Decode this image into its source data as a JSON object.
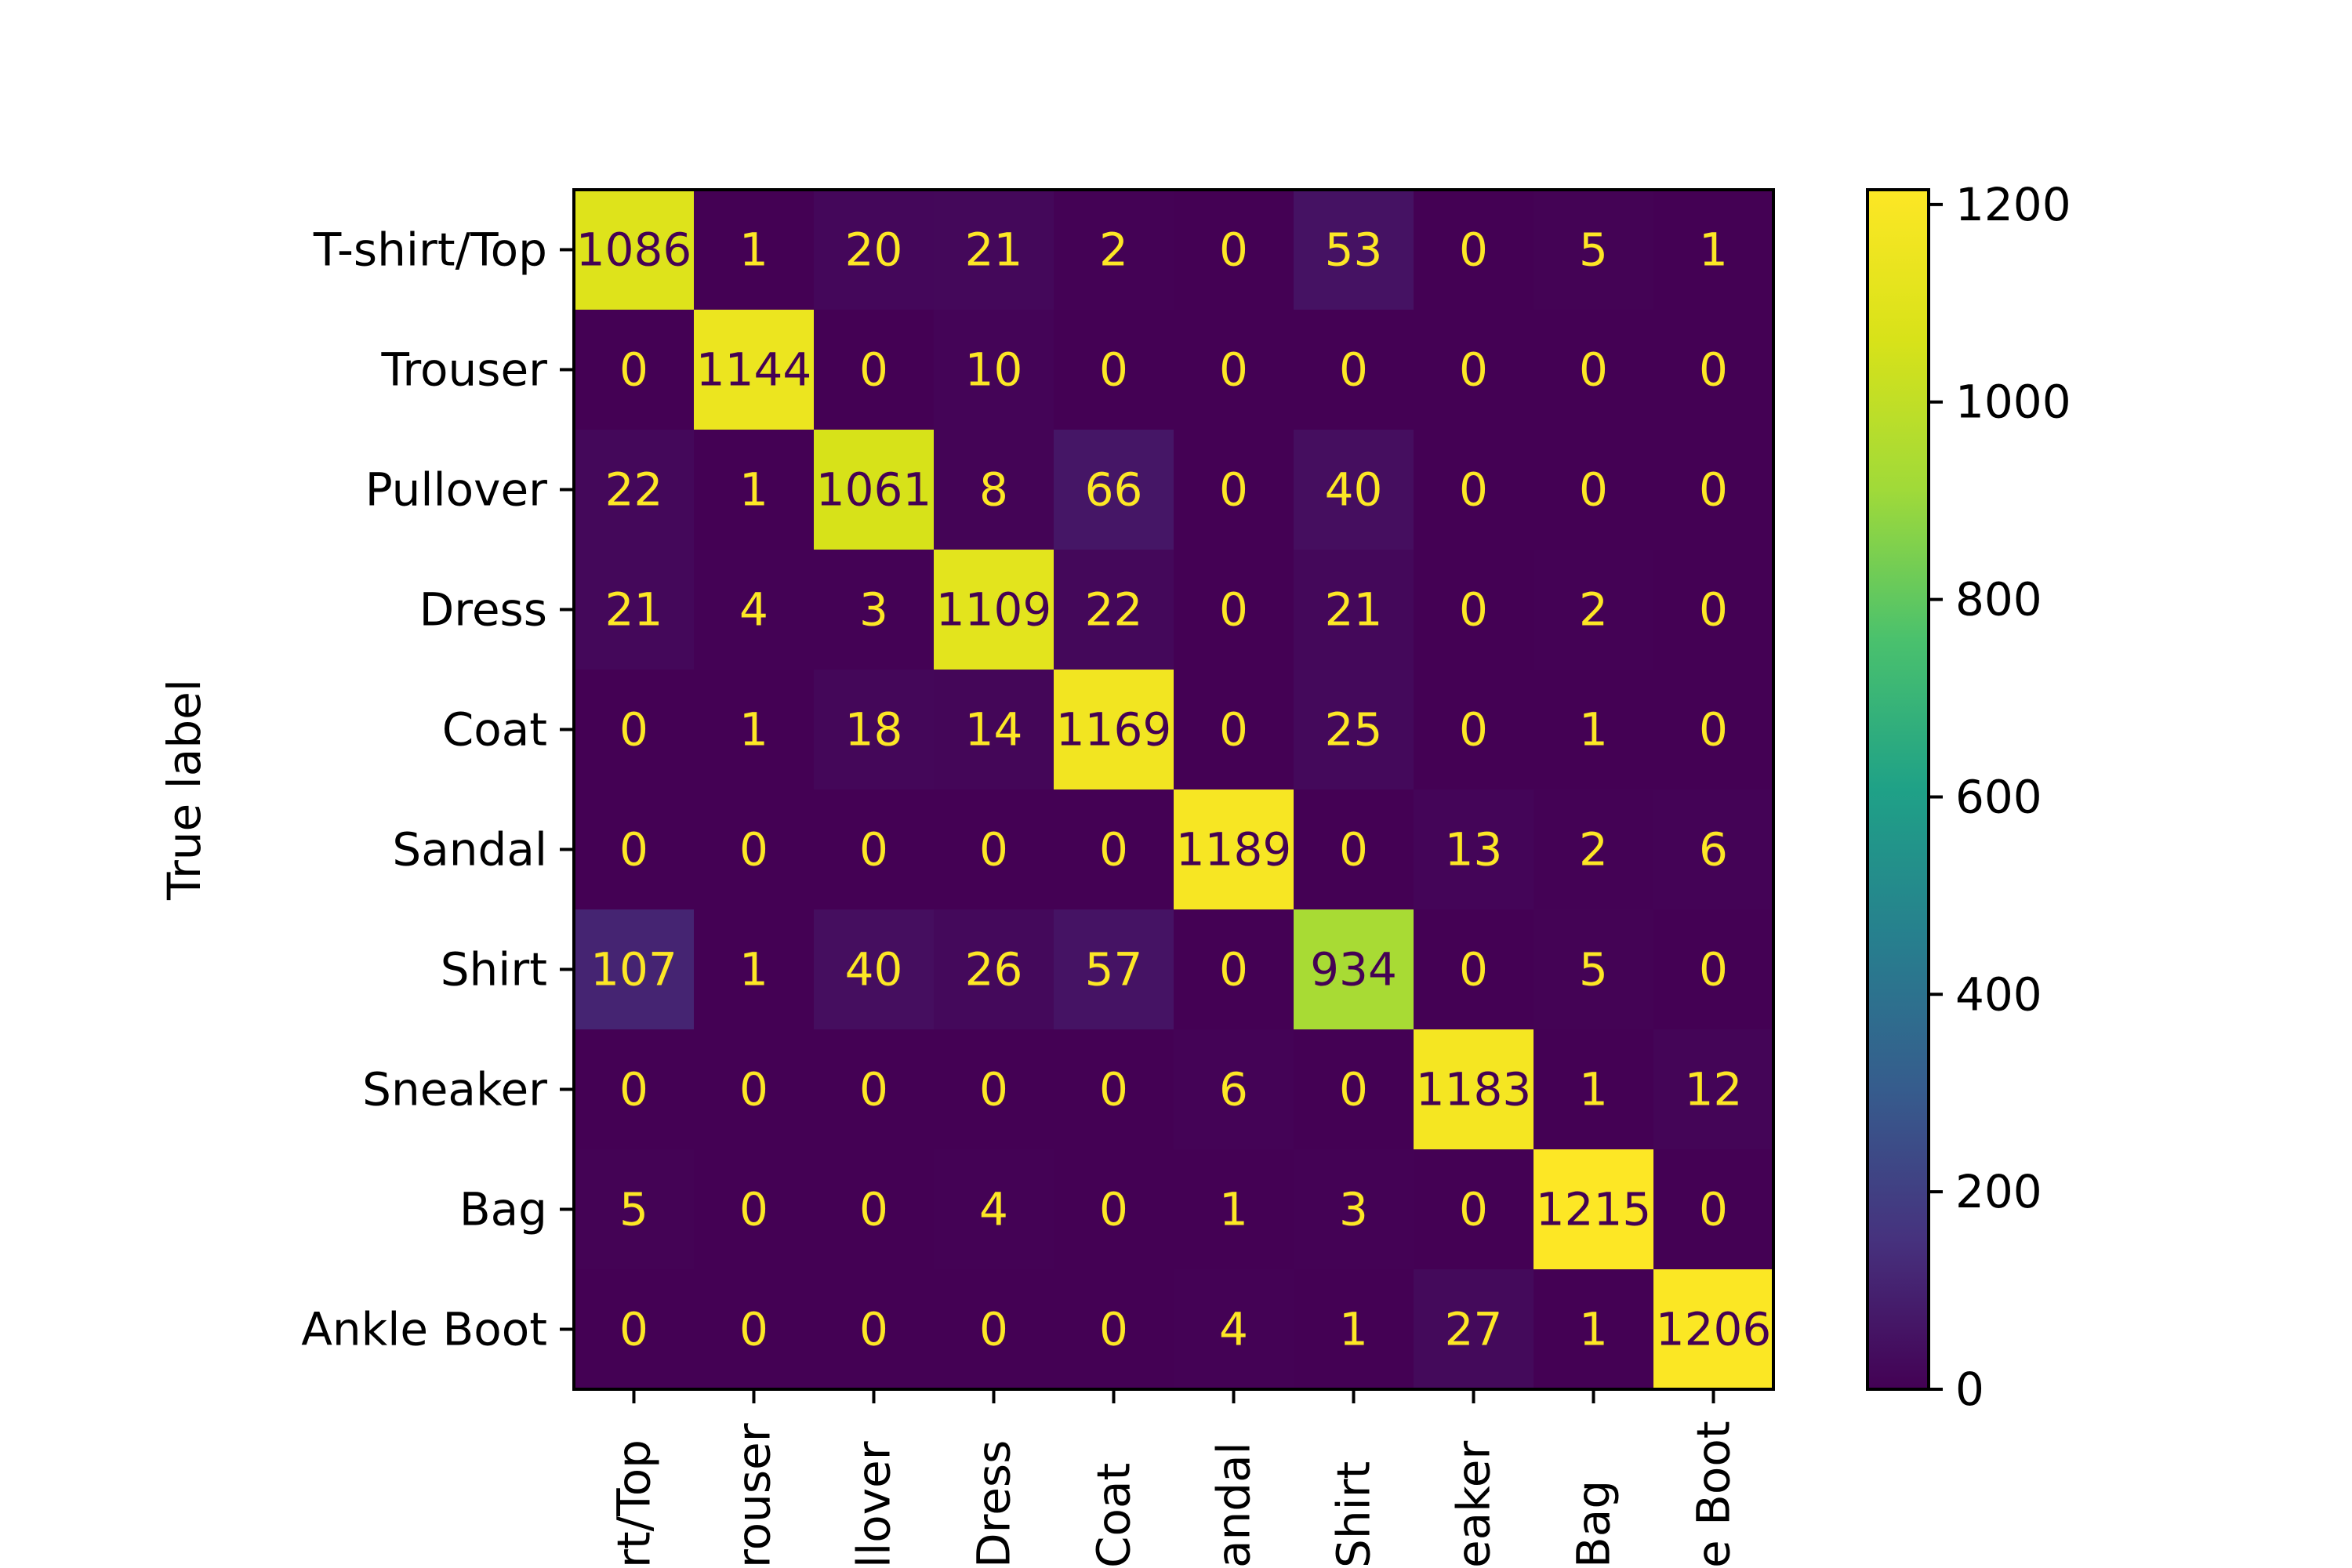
{
  "chart_data": {
    "type": "heatmap",
    "title": "",
    "ylabel": "True label",
    "xlabel": "",
    "row_labels": [
      "T-shirt/Top",
      "Trouser",
      "Pullover",
      "Dress",
      "Coat",
      "Sandal",
      "Shirt",
      "Sneaker",
      "Bag",
      "Ankle Boot"
    ],
    "col_labels_visible": [
      "rt/Top",
      "rouser",
      "llover",
      "Dress",
      "Coat",
      "andal",
      "Shirt",
      "eaker",
      "Bag",
      "e Boot"
    ],
    "matrix": [
      [
        1086,
        1,
        20,
        21,
        2,
        0,
        53,
        0,
        5,
        1
      ],
      [
        0,
        1144,
        0,
        10,
        0,
        0,
        0,
        0,
        0,
        0
      ],
      [
        22,
        1,
        1061,
        8,
        66,
        0,
        40,
        0,
        0,
        0
      ],
      [
        21,
        4,
        3,
        1109,
        22,
        0,
        21,
        0,
        2,
        0
      ],
      [
        0,
        1,
        18,
        14,
        1169,
        0,
        25,
        0,
        1,
        0
      ],
      [
        0,
        0,
        0,
        0,
        0,
        1189,
        0,
        13,
        2,
        6
      ],
      [
        107,
        1,
        40,
        26,
        57,
        0,
        934,
        0,
        5,
        0
      ],
      [
        0,
        0,
        0,
        0,
        0,
        6,
        0,
        1183,
        1,
        12
      ],
      [
        5,
        0,
        0,
        4,
        0,
        1,
        3,
        0,
        1215,
        0
      ],
      [
        0,
        0,
        0,
        0,
        0,
        4,
        1,
        27,
        1,
        1206
      ]
    ],
    "colorbar": {
      "range": [
        0,
        1215
      ],
      "ticks": [
        0,
        200,
        400,
        600,
        800,
        1000,
        1200
      ],
      "colormap": "viridis"
    },
    "text_colors": {
      "light": "#fde725",
      "dark": "#440154"
    }
  }
}
